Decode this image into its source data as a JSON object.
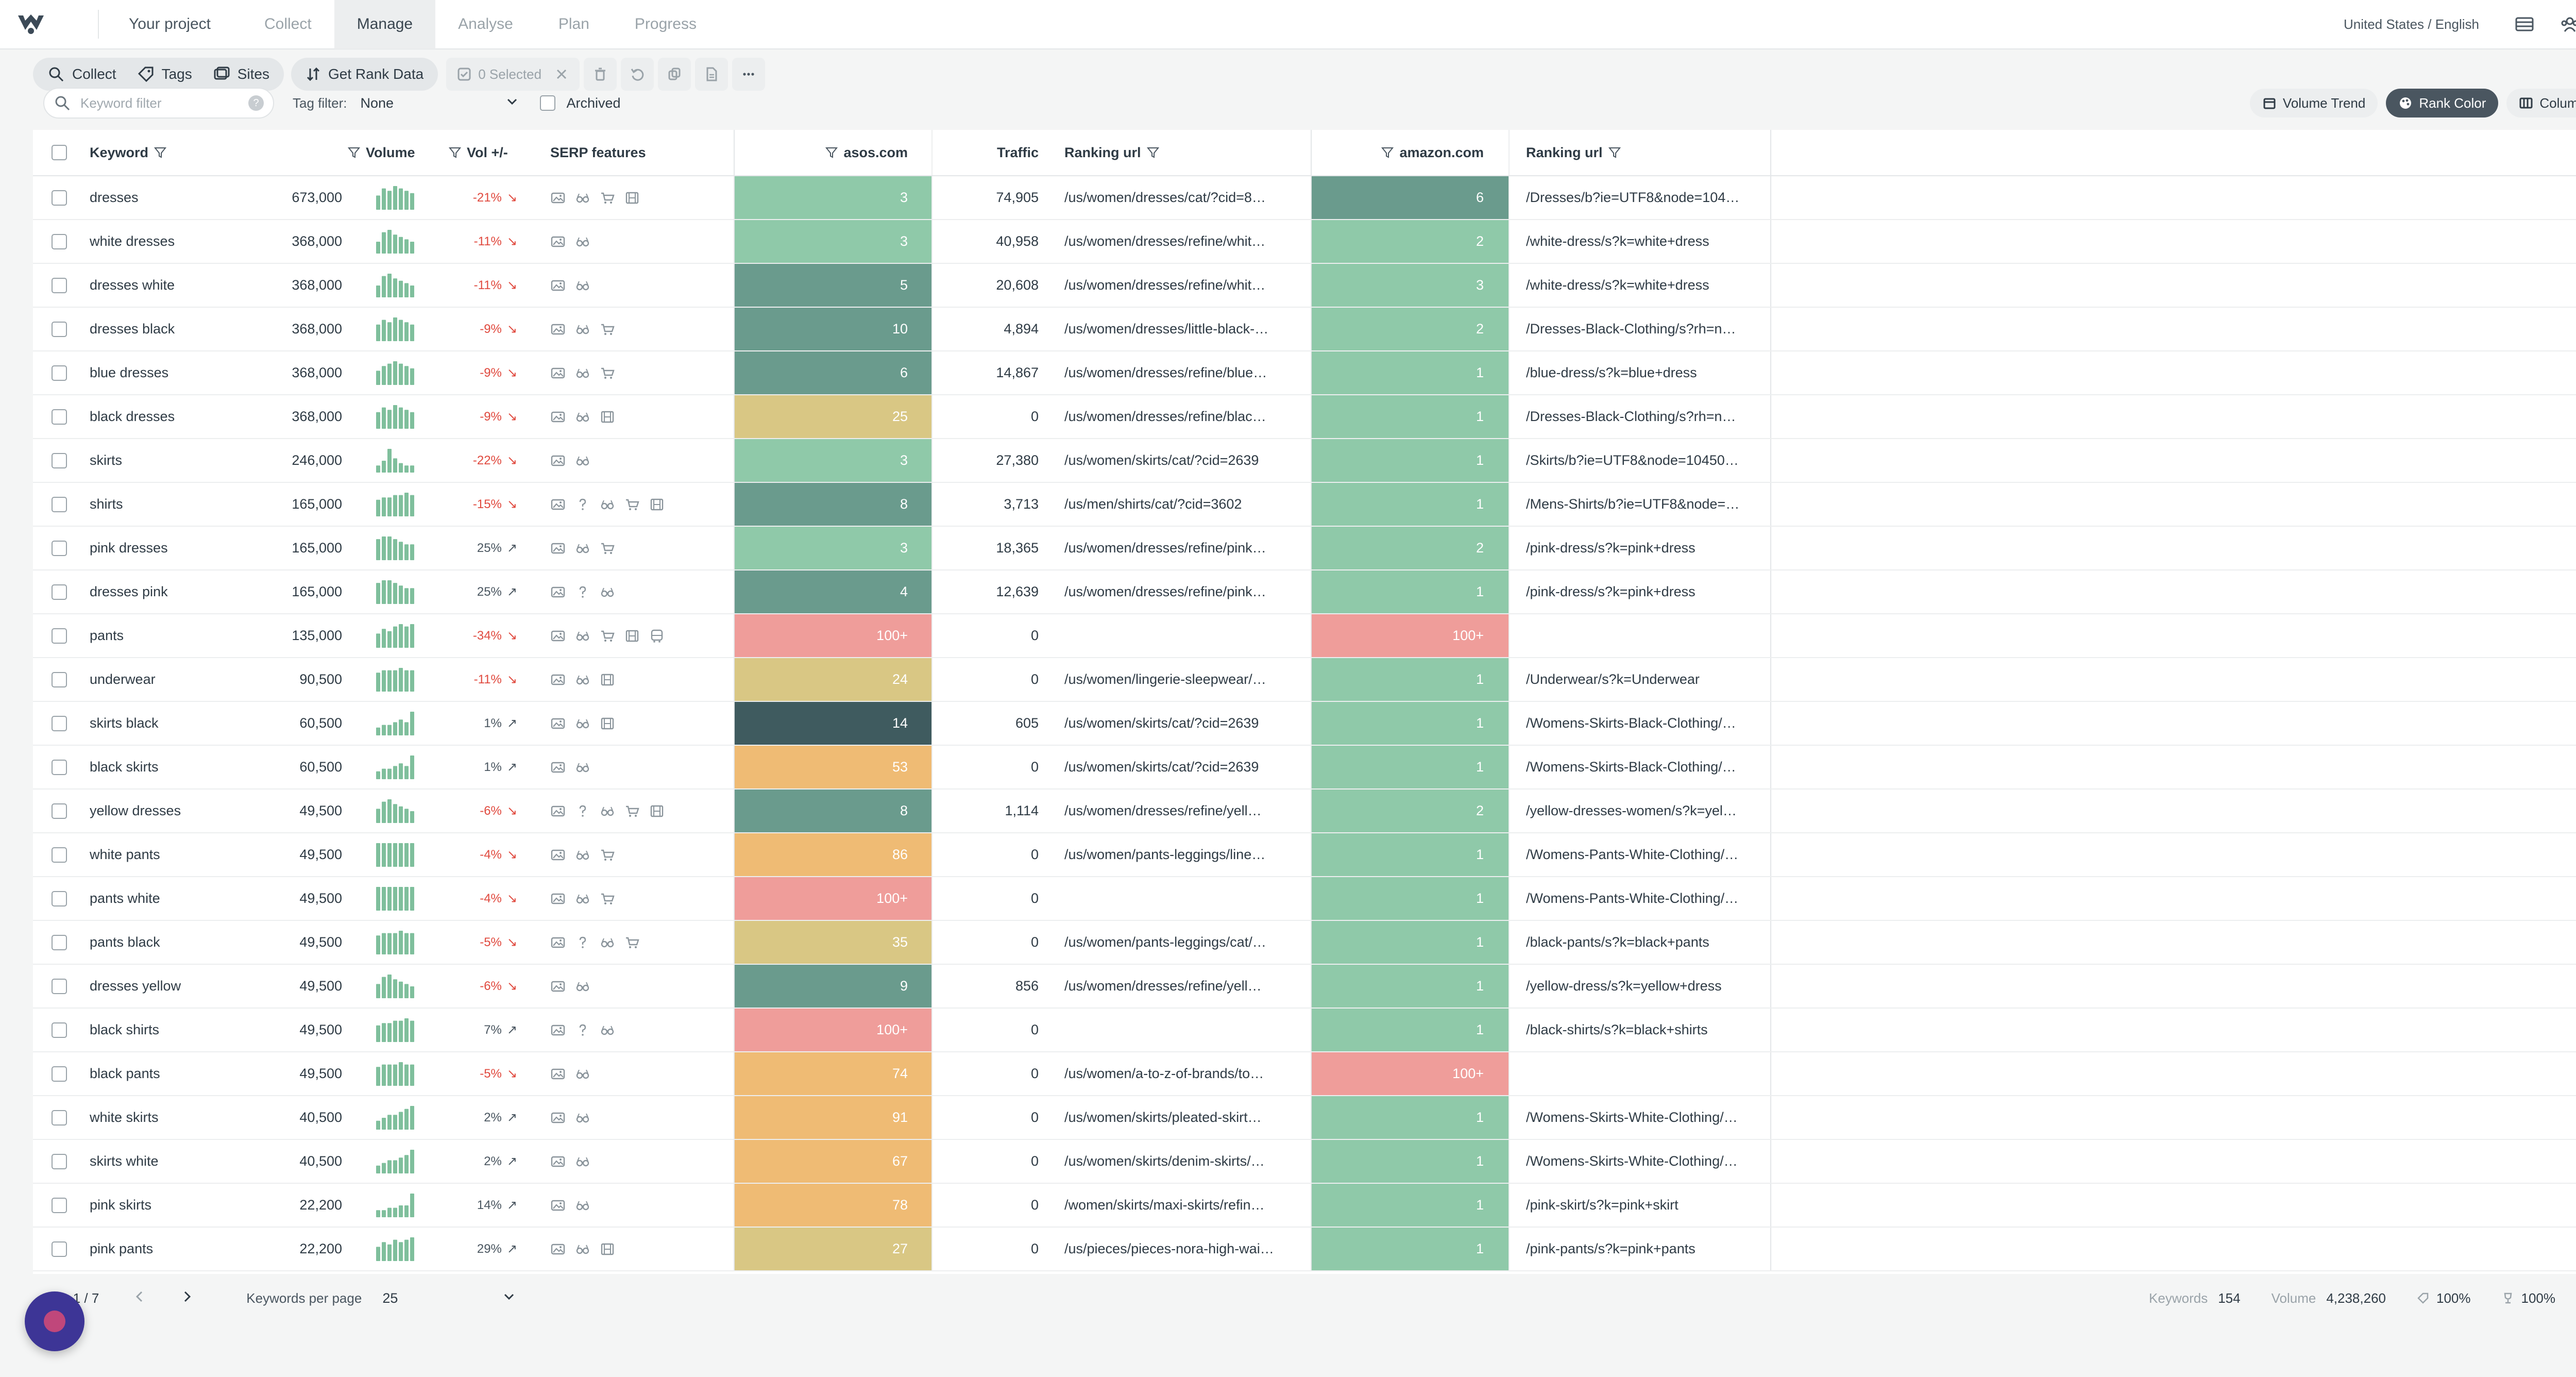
{
  "app": {
    "project_label": "Your project",
    "nav": [
      {
        "label": "Collect",
        "active": false
      },
      {
        "label": "Manage",
        "active": true
      },
      {
        "label": "Analyse",
        "active": false
      },
      {
        "label": "Plan",
        "active": false
      },
      {
        "label": "Progress",
        "active": false
      }
    ],
    "locale": "United States / English",
    "icons": [
      "layout-icon",
      "team-icon",
      "gear-icon"
    ]
  },
  "toolbar": {
    "collect_label": "Collect",
    "tags_label": "Tags",
    "sites_label": "Sites",
    "get_rank_label": "Get Rank Data",
    "selected_label": "0 Selected"
  },
  "filters": {
    "keyword_placeholder": "Keyword filter",
    "tag_filter_label": "Tag filter:",
    "tag_filter_value": "None",
    "archived_label": "Archived"
  },
  "view_buttons": {
    "volume_trend": "Volume Trend",
    "rank_color": "Rank Color",
    "columns": "Columns"
  },
  "colors": {
    "rank_1_3": "#8fc9a9",
    "rank_4_10": "#6a9b8d",
    "rank_11_20": "#3f5b5f",
    "rank_21_50": "#d9c784",
    "rank_51_99": "#efbb74",
    "rank_100": "#ef9d9a",
    "accent_dark": "#4a5660",
    "variation_down": "#e0493e"
  },
  "table": {
    "headers": {
      "keyword": "Keyword",
      "volume": "Volume",
      "variation": "Vol +/-",
      "serp": "SERP features",
      "site1": "asos.com",
      "traffic": "Traffic",
      "url1": "Ranking url",
      "site2": "amazon.com",
      "url2": "Ranking url"
    },
    "rows": [
      {
        "kw": "dresses",
        "vol": "673,000",
        "var": "-21%",
        "dir": "down",
        "serp": [
          "image",
          "glasses",
          "cart",
          "film"
        ],
        "r1": "3",
        "c1": "rank_1_3",
        "traffic": "74,905",
        "u1": "/us/women/dresses/cat/?cid=8…",
        "r2": "6",
        "c2": "rank_4_10",
        "u2": "/Dresses/b?ie=UTF8&node=104…",
        "spark": [
          6,
          9,
          8,
          10,
          9,
          8,
          7
        ]
      },
      {
        "kw": "white dresses",
        "vol": "368,000",
        "var": "-11%",
        "dir": "down",
        "serp": [
          "image",
          "glasses"
        ],
        "r1": "3",
        "c1": "rank_1_3",
        "traffic": "40,958",
        "u1": "/us/women/dresses/refine/whit…",
        "r2": "2",
        "c2": "rank_1_3",
        "u2": "/white-dress/s?k=white+dress",
        "spark": [
          5,
          9,
          10,
          8,
          7,
          6,
          5
        ]
      },
      {
        "kw": "dresses white",
        "vol": "368,000",
        "var": "-11%",
        "dir": "down",
        "serp": [
          "image",
          "glasses"
        ],
        "r1": "5",
        "c1": "rank_4_10",
        "traffic": "20,608",
        "u1": "/us/women/dresses/refine/whit…",
        "r2": "3",
        "c2": "rank_1_3",
        "u2": "/white-dress/s?k=white+dress",
        "spark": [
          5,
          9,
          10,
          8,
          7,
          6,
          5
        ]
      },
      {
        "kw": "dresses black",
        "vol": "368,000",
        "var": "-9%",
        "dir": "down",
        "serp": [
          "image",
          "glasses",
          "cart"
        ],
        "r1": "10",
        "c1": "rank_4_10",
        "traffic": "4,894",
        "u1": "/us/women/dresses/little-black-…",
        "r2": "2",
        "c2": "rank_1_3",
        "u2": "/Dresses-Black-Clothing/s?rh=n…",
        "spark": [
          7,
          9,
          8,
          10,
          9,
          8,
          7
        ]
      },
      {
        "kw": "blue dresses",
        "vol": "368,000",
        "var": "-9%",
        "dir": "down",
        "serp": [
          "image",
          "glasses",
          "cart"
        ],
        "r1": "6",
        "c1": "rank_4_10",
        "traffic": "14,867",
        "u1": "/us/women/dresses/refine/blue…",
        "r2": "1",
        "c2": "rank_1_3",
        "u2": "/blue-dress/s?k=blue+dress",
        "spark": [
          6,
          8,
          9,
          10,
          9,
          8,
          7
        ]
      },
      {
        "kw": "black dresses",
        "vol": "368,000",
        "var": "-9%",
        "dir": "down",
        "serp": [
          "image",
          "glasses",
          "film"
        ],
        "r1": "25",
        "c1": "rank_21_50",
        "traffic": "0",
        "u1": "/us/women/dresses/refine/blac…",
        "r2": "1",
        "c2": "rank_1_3",
        "u2": "/Dresses-Black-Clothing/s?rh=n…",
        "spark": [
          7,
          9,
          8,
          10,
          9,
          8,
          7
        ]
      },
      {
        "kw": "skirts",
        "vol": "246,000",
        "var": "-22%",
        "dir": "down",
        "serp": [
          "image",
          "glasses"
        ],
        "r1": "3",
        "c1": "rank_1_3",
        "traffic": "27,380",
        "u1": "/us/women/skirts/cat/?cid=2639",
        "r2": "1",
        "c2": "rank_1_3",
        "u2": "/Skirts/b?ie=UTF8&node=10450…",
        "spark": [
          3,
          5,
          10,
          6,
          4,
          3,
          3
        ]
      },
      {
        "kw": "shirts",
        "vol": "165,000",
        "var": "-15%",
        "dir": "down",
        "serp": [
          "image",
          "question",
          "glasses",
          "cart",
          "film"
        ],
        "r1": "8",
        "c1": "rank_4_10",
        "traffic": "3,713",
        "u1": "/us/men/shirts/cat/?cid=3602",
        "r2": "1",
        "c2": "rank_1_3",
        "u2": "/Mens-Shirts/b?ie=UTF8&node=…",
        "spark": [
          7,
          8,
          8,
          9,
          9,
          10,
          9
        ]
      },
      {
        "kw": "pink dresses",
        "vol": "165,000",
        "var": "25%",
        "dir": "up",
        "serp": [
          "image",
          "glasses",
          "cart"
        ],
        "r1": "3",
        "c1": "rank_1_3",
        "traffic": "18,365",
        "u1": "/us/women/dresses/refine/pink…",
        "r2": "2",
        "c2": "rank_1_3",
        "u2": "/pink-dress/s?k=pink+dress",
        "spark": [
          8,
          9,
          9,
          8,
          7,
          6,
          6
        ]
      },
      {
        "kw": "dresses pink",
        "vol": "165,000",
        "var": "25%",
        "dir": "up",
        "serp": [
          "image",
          "question",
          "glasses"
        ],
        "r1": "4",
        "c1": "rank_4_10",
        "traffic": "12,639",
        "u1": "/us/women/dresses/refine/pink…",
        "r2": "1",
        "c2": "rank_1_3",
        "u2": "/pink-dress/s?k=pink+dress",
        "spark": [
          8,
          9,
          9,
          8,
          7,
          6,
          6
        ]
      },
      {
        "kw": "pants",
        "vol": "135,000",
        "var": "-34%",
        "dir": "down",
        "serp": [
          "image",
          "glasses",
          "cart",
          "film",
          "bus"
        ],
        "r1": "100+",
        "c1": "rank_100",
        "traffic": "0",
        "u1": "",
        "r2": "100+",
        "c2": "rank_100",
        "u2": "",
        "spark": [
          6,
          8,
          7,
          9,
          10,
          9,
          10
        ]
      },
      {
        "kw": "underwear",
        "vol": "90,500",
        "var": "-11%",
        "dir": "down",
        "serp": [
          "image",
          "glasses",
          "film"
        ],
        "r1": "24",
        "c1": "rank_21_50",
        "traffic": "0",
        "u1": "/us/women/lingerie-sleepwear/…",
        "r2": "1",
        "c2": "rank_1_3",
        "u2": "/Underwear/s?k=Underwear",
        "spark": [
          8,
          9,
          9,
          9,
          10,
          9,
          9
        ]
      },
      {
        "kw": "skirts black",
        "vol": "60,500",
        "var": "1%",
        "dir": "up",
        "serp": [
          "image",
          "glasses",
          "film"
        ],
        "r1": "14",
        "c1": "rank_11_20",
        "traffic": "605",
        "u1": "/us/women/skirts/cat/?cid=2639",
        "r2": "1",
        "c2": "rank_1_3",
        "u2": "/Womens-Skirts-Black-Clothing/…",
        "spark": [
          3,
          4,
          4,
          5,
          6,
          5,
          9
        ]
      },
      {
        "kw": "black skirts",
        "vol": "60,500",
        "var": "1%",
        "dir": "up",
        "serp": [
          "image",
          "glasses"
        ],
        "r1": "53",
        "c1": "rank_51_99",
        "traffic": "0",
        "u1": "/us/women/skirts/cat/?cid=2639",
        "r2": "1",
        "c2": "rank_1_3",
        "u2": "/Womens-Skirts-Black-Clothing/…",
        "spark": [
          3,
          4,
          4,
          5,
          6,
          5,
          9
        ]
      },
      {
        "kw": "yellow dresses",
        "vol": "49,500",
        "var": "-6%",
        "dir": "down",
        "serp": [
          "image",
          "question",
          "glasses",
          "cart",
          "film"
        ],
        "r1": "8",
        "c1": "rank_4_10",
        "traffic": "1,114",
        "u1": "/us/women/dresses/refine/yell…",
        "r2": "2",
        "c2": "rank_1_3",
        "u2": "/yellow-dresses-women/s?k=yel…",
        "spark": [
          6,
          9,
          10,
          8,
          7,
          6,
          5
        ]
      },
      {
        "kw": "white pants",
        "vol": "49,500",
        "var": "-4%",
        "dir": "down",
        "serp": [
          "image",
          "glasses",
          "cart"
        ],
        "r1": "86",
        "c1": "rank_51_99",
        "traffic": "0",
        "u1": "/us/women/pants-leggings/line…",
        "r2": "1",
        "c2": "rank_1_3",
        "u2": "/Womens-Pants-White-Clothing/…",
        "spark": [
          9,
          9,
          9,
          9,
          9,
          9,
          9
        ]
      },
      {
        "kw": "pants white",
        "vol": "49,500",
        "var": "-4%",
        "dir": "down",
        "serp": [
          "image",
          "glasses",
          "cart"
        ],
        "r1": "100+",
        "c1": "rank_100",
        "traffic": "0",
        "u1": "",
        "r2": "1",
        "c2": "rank_1_3",
        "u2": "/Womens-Pants-White-Clothing/…",
        "spark": [
          9,
          9,
          9,
          9,
          9,
          9,
          9
        ]
      },
      {
        "kw": "pants black",
        "vol": "49,500",
        "var": "-5%",
        "dir": "down",
        "serp": [
          "image",
          "question",
          "glasses",
          "cart"
        ],
        "r1": "35",
        "c1": "rank_21_50",
        "traffic": "0",
        "u1": "/us/women/pants-leggings/cat/…",
        "r2": "1",
        "c2": "rank_1_3",
        "u2": "/black-pants/s?k=black+pants",
        "spark": [
          8,
          9,
          9,
          9,
          10,
          9,
          9
        ]
      },
      {
        "kw": "dresses yellow",
        "vol": "49,500",
        "var": "-6%",
        "dir": "down",
        "serp": [
          "image",
          "glasses"
        ],
        "r1": "9",
        "c1": "rank_4_10",
        "traffic": "856",
        "u1": "/us/women/dresses/refine/yell…",
        "r2": "1",
        "c2": "rank_1_3",
        "u2": "/yellow-dress/s?k=yellow+dress",
        "spark": [
          6,
          9,
          10,
          8,
          7,
          6,
          5
        ]
      },
      {
        "kw": "black shirts",
        "vol": "49,500",
        "var": "7%",
        "dir": "up",
        "serp": [
          "image",
          "question",
          "glasses"
        ],
        "r1": "100+",
        "c1": "rank_100",
        "traffic": "0",
        "u1": "",
        "r2": "1",
        "c2": "rank_1_3",
        "u2": "/black-shirts/s?k=black+shirts",
        "spark": [
          7,
          8,
          8,
          9,
          9,
          10,
          9
        ]
      },
      {
        "kw": "black pants",
        "vol": "49,500",
        "var": "-5%",
        "dir": "down",
        "serp": [
          "image",
          "glasses"
        ],
        "r1": "74",
        "c1": "rank_51_99",
        "traffic": "0",
        "u1": "/us/women/a-to-z-of-brands/to…",
        "r2": "100+",
        "c2": "rank_100",
        "u2": "",
        "spark": [
          8,
          9,
          9,
          9,
          10,
          9,
          9
        ]
      },
      {
        "kw": "white skirts",
        "vol": "40,500",
        "var": "2%",
        "dir": "up",
        "serp": [
          "image",
          "glasses"
        ],
        "r1": "91",
        "c1": "rank_51_99",
        "traffic": "0",
        "u1": "/us/women/skirts/pleated-skirt…",
        "r2": "1",
        "c2": "rank_1_3",
        "u2": "/Womens-Skirts-White-Clothing/…",
        "spark": [
          3,
          4,
          5,
          5,
          6,
          7,
          8
        ]
      },
      {
        "kw": "skirts white",
        "vol": "40,500",
        "var": "2%",
        "dir": "up",
        "serp": [
          "image",
          "glasses"
        ],
        "r1": "67",
        "c1": "rank_51_99",
        "traffic": "0",
        "u1": "/us/women/skirts/denim-skirts/…",
        "r2": "1",
        "c2": "rank_1_3",
        "u2": "/Womens-Skirts-White-Clothing/…",
        "spark": [
          3,
          4,
          5,
          5,
          6,
          7,
          9
        ]
      },
      {
        "kw": "pink skirts",
        "vol": "22,200",
        "var": "14%",
        "dir": "up",
        "serp": [
          "image",
          "glasses"
        ],
        "r1": "78",
        "c1": "rank_51_99",
        "traffic": "0",
        "u1": "/women/skirts/maxi-skirts/refin…",
        "r2": "1",
        "c2": "rank_1_3",
        "u2": "/pink-skirt/s?k=pink+skirt",
        "spark": [
          3,
          3,
          4,
          4,
          5,
          5,
          10
        ]
      },
      {
        "kw": "pink pants",
        "vol": "22,200",
        "var": "29%",
        "dir": "up",
        "serp": [
          "image",
          "glasses",
          "film"
        ],
        "r1": "27",
        "c1": "rank_21_50",
        "traffic": "0",
        "u1": "/us/pieces/pieces-nora-high-wai…",
        "r2": "1",
        "c2": "rank_1_3",
        "u2": "/pink-pants/s?k=pink+pants",
        "spark": [
          6,
          8,
          7,
          9,
          8,
          9,
          10
        ]
      }
    ]
  },
  "footer": {
    "page_text": "e 1 / 7",
    "per_page_label": "Keywords per page",
    "per_page_value": "25",
    "keywords_label": "Keywords",
    "keywords_value": "154",
    "volume_label": "Volume",
    "volume_value": "4,238,260",
    "pct1": "100%",
    "pct2": "100%"
  }
}
